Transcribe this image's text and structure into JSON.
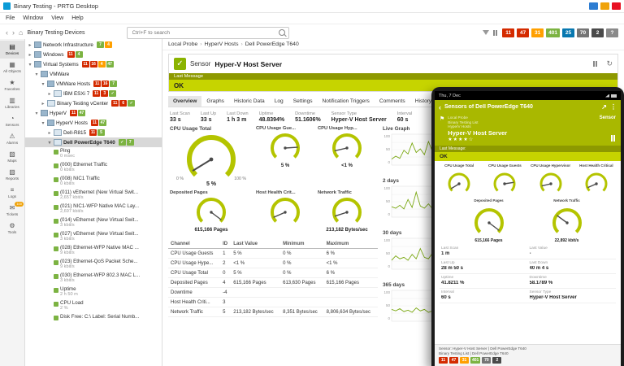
{
  "colors": {
    "accent": "#b4c400",
    "message": "#c6d400",
    "olive": "#8d9900",
    "phone_header": "#a9b800",
    "status_red": "#d42b00",
    "status_orange": "#ffa000",
    "status_green": "#7cb342",
    "status_blue": "#0878b0",
    "status_gray": "#757575",
    "status_darkgray": "#4a4a4a"
  },
  "window": {
    "title": "Binary Testing - PRTG Desktop",
    "menus": [
      "File",
      "Window",
      "View",
      "Help"
    ]
  },
  "toolbar": {
    "breadcrumb": [
      "Binary Testing",
      "Devices"
    ],
    "search_placeholder": "Ctrl+F to search",
    "help_label": "?",
    "badges": [
      {
        "text": "11",
        "color": "#d42b00"
      },
      {
        "text": "47",
        "color": "#d42b00"
      },
      {
        "text": "31",
        "color": "#ffa000"
      },
      {
        "text": "401",
        "color": "#7cb342"
      },
      {
        "text": "25",
        "color": "#0878b0"
      },
      {
        "text": "70",
        "color": "#757575"
      },
      {
        "text": "2",
        "color": "#4a4a4a"
      }
    ]
  },
  "sidebar": {
    "items": [
      {
        "label": "Devices",
        "icon": "devices-icon",
        "active": true
      },
      {
        "label": "All Objects",
        "icon": "all-objects-icon"
      },
      {
        "label": "Favorites",
        "icon": "favorites-icon"
      },
      {
        "label": "Libraries",
        "icon": "libraries-icon"
      },
      {
        "label": "Sensors",
        "icon": "sensors-icon"
      },
      {
        "label": "Alarms",
        "icon": "alarms-icon"
      },
      {
        "label": "Maps",
        "icon": "maps-icon"
      },
      {
        "label": "Reports",
        "icon": "reports-icon"
      },
      {
        "label": "Logs",
        "icon": "logs-icon"
      },
      {
        "label": "Tickets",
        "icon": "tickets-icon",
        "badge": "100"
      },
      {
        "label": "Tools",
        "icon": "tools-icon"
      }
    ]
  },
  "tree": {
    "rows": [
      {
        "indent": 0,
        "type": "group",
        "label": "Network Infrastructure",
        "exp": "closed",
        "badges": [
          {
            "t": "7",
            "c": "#7cb342"
          },
          {
            "t": "4",
            "c": "#ffa000"
          }
        ]
      },
      {
        "indent": 0,
        "type": "group",
        "label": "Windows",
        "exp": "closed",
        "badges": [
          {
            "t": "11",
            "c": "#d42b00"
          },
          {
            "t": "4",
            "c": "#7cb342"
          }
        ]
      },
      {
        "indent": 0,
        "type": "group",
        "label": "Virtual Systems",
        "exp": "open",
        "badges": [
          {
            "t": "11",
            "c": "#d42b00"
          },
          {
            "t": "16",
            "c": "#d42b00"
          },
          {
            "t": "4",
            "c": "#ffa000"
          },
          {
            "t": "47",
            "c": "#7cb342"
          }
        ]
      },
      {
        "indent": 1,
        "type": "group",
        "label": "VMWare",
        "exp": "open",
        "badges": []
      },
      {
        "indent": 2,
        "type": "group",
        "label": "VMWare Hosts",
        "exp": "open",
        "badges": [
          {
            "t": "11",
            "c": "#d42b00"
          },
          {
            "t": "16",
            "c": "#d42b00"
          },
          {
            "t": "7",
            "c": "#7cb342"
          }
        ]
      },
      {
        "indent": 3,
        "type": "device",
        "label": "IBM ESXi 7",
        "exp": "closed",
        "badges": [
          {
            "t": "11",
            "c": "#d42b00"
          },
          {
            "t": "3",
            "c": "#d42b00"
          },
          {
            "t": "✓",
            "c": "#7cb342"
          }
        ]
      },
      {
        "indent": 2,
        "type": "device",
        "label": "Binary Testing vCenter",
        "exp": "closed",
        "badges": [
          {
            "t": "11",
            "c": "#d42b00"
          },
          {
            "t": "6",
            "c": "#d42b00"
          },
          {
            "t": "✓",
            "c": "#7cb342"
          }
        ]
      },
      {
        "indent": 1,
        "type": "group",
        "label": "HyperV",
        "exp": "open",
        "badges": [
          {
            "t": "11",
            "c": "#d42b00"
          },
          {
            "t": "47",
            "c": "#7cb342"
          }
        ]
      },
      {
        "indent": 2,
        "type": "group",
        "label": "HyperV Hosts",
        "exp": "open",
        "badges": [
          {
            "t": "11",
            "c": "#d42b00"
          },
          {
            "t": "47",
            "c": "#7cb342"
          }
        ]
      },
      {
        "indent": 3,
        "type": "device",
        "label": "Dell-R815",
        "exp": "closed",
        "badges": [
          {
            "t": "11",
            "c": "#d42b00"
          },
          {
            "t": "5",
            "c": "#7cb342"
          }
        ]
      },
      {
        "indent": 3,
        "type": "device",
        "label": "Dell PowerEdge T640",
        "exp": "open",
        "selected": true,
        "badges": [
          {
            "t": "✓",
            "c": "#7cb342"
          },
          {
            "t": "7",
            "c": "#7cb342"
          }
        ]
      },
      {
        "indent": 4,
        "type": "sensor",
        "label": "Ping",
        "value": "0 msec"
      },
      {
        "indent": 4,
        "type": "sensor",
        "label": "(000) Ethernet Traffic",
        "value": "0 kbit/s"
      },
      {
        "indent": 4,
        "type": "sensor",
        "label": "(008) NIC1 Traffic",
        "value": "0 kbit/s"
      },
      {
        "indent": 4,
        "type": "sensor",
        "label": "(011) vEthernet (New Virtual Swit...",
        "value": "2,657 kbit/s"
      },
      {
        "indent": 4,
        "type": "sensor",
        "label": "(021) NIC1-WFP Native MAC Lay...",
        "value": "2,697 kbit/s"
      },
      {
        "indent": 4,
        "type": "sensor",
        "label": "(014) vEthernet (New Virtual Swit...",
        "value": "3 kbit/s"
      },
      {
        "indent": 4,
        "type": "sensor",
        "label": "(027) vEthernet (New Virtual Swit...",
        "value": "3 kbit/s"
      },
      {
        "indent": 4,
        "type": "sensor",
        "label": "(028) Ethernet-WFP Native MAC ...",
        "value": "9 kbit/s"
      },
      {
        "indent": 4,
        "type": "sensor",
        "label": "(023) Ethernet-QoS Packet Sche...",
        "value": "9 kbit/s"
      },
      {
        "indent": 4,
        "type": "sensor",
        "label": "(030) Ethernet-WFP 802.3 MAC L...",
        "value": "3 kbit/s"
      },
      {
        "indent": 4,
        "type": "sensor",
        "label": "Uptime",
        "value": "2 h 50 m"
      },
      {
        "indent": 4,
        "type": "sensor",
        "label": "CPU Load",
        "value": "2 %"
      },
      {
        "indent": 4,
        "type": "sensor",
        "label": "Disk Free: C:\\ Label:  Serial Numb...",
        "value": ""
      }
    ]
  },
  "main": {
    "breadcrumb": [
      "Local Probe",
      "HyperV Hosts",
      "Dell PowerEdge T640"
    ],
    "sensor_label": "Sensor",
    "sensor_name": "Hyper-V Host Server",
    "last_message_label": "Last Message",
    "last_message": "OK",
    "tabs": [
      "Overview",
      "Graphs",
      "Historic Data",
      "Log",
      "Settings",
      "Notification Triggers",
      "Comments",
      "History"
    ],
    "active_tab": "Overview",
    "stats": [
      {
        "label": "Last Scan",
        "value": "33 s"
      },
      {
        "label": "Last Up",
        "value": "33 s"
      },
      {
        "label": "Last Down",
        "value": "1 h 3 m"
      },
      {
        "label": "Uptime",
        "value": "48.8394%"
      },
      {
        "label": "Downtime",
        "value": "51.1606%"
      },
      {
        "label": "Sensor Type",
        "value": "Hyper-V Host Server"
      },
      {
        "label": "Interval",
        "value": "60 s"
      }
    ],
    "gauges": [
      {
        "label": "CPU Usage Total",
        "value": "5 %",
        "min": "0 %",
        "max": "100 %",
        "frac": 0.05,
        "big": true
      },
      {
        "label": "CPU Usage Gue...",
        "value": "5 %",
        "frac": 0.82
      },
      {
        "label": "CPU Usage Hyp...",
        "value": "<1 %",
        "frac": 0.12
      },
      {
        "label": "Deposited Pages",
        "value": "615,166 Pages",
        "frac": 0.97
      },
      {
        "label": "Host Health Crit...",
        "value": "",
        "frac": 0.08
      },
      {
        "label": "Network Traffic",
        "value": "213,182 Bytes/sec",
        "frac": 0.1
      }
    ],
    "table": {
      "headers": [
        "Channel",
        "ID",
        "Last Value",
        "Minimum",
        "Maximum"
      ],
      "rows": [
        [
          "CPU Usage Guests",
          "1",
          "5 %",
          "0 %",
          "6 %"
        ],
        [
          "CPU Usage Hype...",
          "2",
          "<1 %",
          "0 %",
          "<1 %"
        ],
        [
          "CPU Usage Total",
          "0",
          "5 %",
          "0 %",
          "6 %"
        ],
        [
          "Deposited Pages",
          "4",
          "615,166 Pages",
          "613,630 Pages",
          "615,166 Pages"
        ],
        [
          "Downtime",
          "-4",
          "",
          "",
          ""
        ],
        [
          "Host Health Criti...",
          "3",
          "",
          "",
          ""
        ],
        [
          "Network Traffic",
          "5",
          "213,182 Bytes/sec",
          "8,351 Bytes/sec",
          "8,806,634 Bytes/sec"
        ]
      ]
    },
    "minigraphs": [
      {
        "title": "Live Graph"
      },
      {
        "title": "2 days"
      },
      {
        "title": "30 days"
      },
      {
        "title": "365 days"
      }
    ],
    "graph_yticks": [
      "100",
      "50",
      "0"
    ]
  },
  "phone": {
    "statusbar": "Thu, 7 Dec",
    "title": "Sensors of Dell PowerEdge T640",
    "section_label": "Sensor",
    "breadcrumb": [
      "Local Probe",
      "Binary Testing List",
      "HyperV Hosts"
    ],
    "sensor_name": "Hyper-V Host Server",
    "stars": "★★★★☆",
    "last_message_label": "Last Message:",
    "last_message": "OK",
    "gauges": [
      {
        "label": "CPU Usage Total",
        "frac": 0.05
      },
      {
        "label": "CPU Usage Guests",
        "frac": 0.8
      },
      {
        "label": "CPU Usage Hypervisor",
        "frac": 0.12
      },
      {
        "label": "Host Health Critical",
        "frac": 0.08
      },
      {
        "label": "Deposited Pages",
        "value": "615,166 Pages",
        "frac": 0.97,
        "big": true
      },
      {
        "label": "Network Traffic",
        "value": "22,892 kbit/s",
        "frac": 0.3,
        "big": true
      }
    ],
    "info": [
      {
        "label": "Last Scan",
        "value": "1 m"
      },
      {
        "label": "Last Value",
        "value": "-"
      },
      {
        "label": "Last Up",
        "value": "28 m 50 s"
      },
      {
        "label": "Last Down",
        "value": "40 m 4 s"
      },
      {
        "label": "Uptime",
        "value": "41.8211 %"
      },
      {
        "label": "Downtime",
        "value": "58.1789 %"
      },
      {
        "label": "Interval",
        "value": "60 s"
      },
      {
        "label": "Sensor Type",
        "value": "Hyper-V Host Server"
      }
    ],
    "footer": {
      "line1": "Sensor: Hyper-V Host Server | Dell PowerEdge T640",
      "line2": "Binary Testing List | Dell PowerEdge T640",
      "badges": [
        {
          "text": "11",
          "color": "#d42b00"
        },
        {
          "text": "47",
          "color": "#d42b00"
        },
        {
          "text": "31",
          "color": "#ffa000"
        },
        {
          "text": "401",
          "color": "#7cb342"
        },
        {
          "text": "70",
          "color": "#757575"
        },
        {
          "text": "2",
          "color": "#4a4a4a"
        }
      ]
    }
  }
}
